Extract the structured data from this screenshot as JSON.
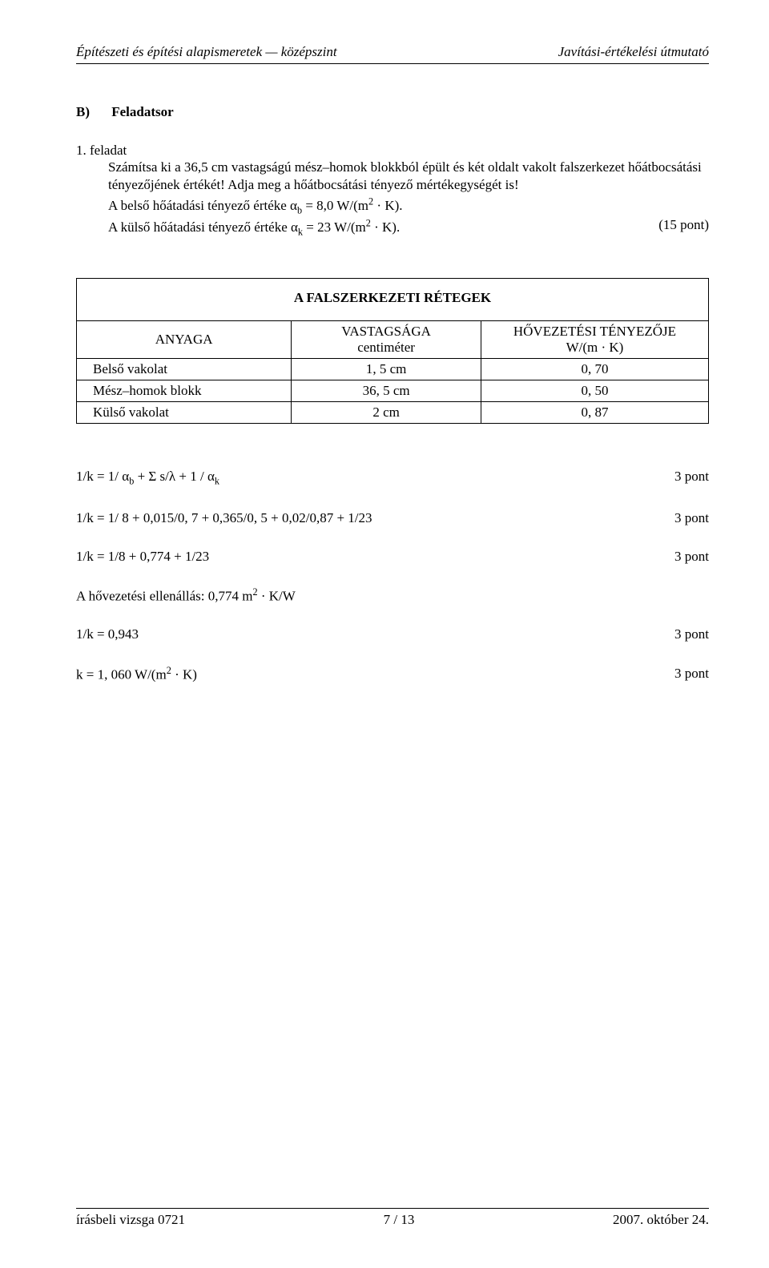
{
  "header": {
    "left": "Építészeti és építési alapismeretek — középszint",
    "right": "Javítási-értékelési útmutató"
  },
  "section": {
    "mark": "B)",
    "title": "Feladatsor"
  },
  "problem": {
    "num": "1. feladat",
    "p1": "Számítsa ki a 36,5 cm vastagságú mész–homok blokkból épült és két oldalt vakolt falszerkezet hőátbocsátási tényezőjének értékét! Adja meg a hőátbocsátási tényező mértékegységét is!",
    "l2_pre": "A belső hőátadási tényező értéke α",
    "l2_sub": "b",
    "l2_post": " = 8,0 W/(m",
    "l2_sup": "2",
    "l2_tail": " · K).",
    "l3_pre": "A külső hőátadási tényező értéke α",
    "l3_sub": "k",
    "l3_post": " = 23 W/(m",
    "l3_sup": "2",
    "l3_tail": " · K).",
    "points_label": "(15 pont)"
  },
  "table": {
    "title": "A FALSZERKEZETI RÉTEGEK",
    "head": {
      "c1": "ANYAGA",
      "c2a": "VASTAGSÁGA",
      "c2b": "centiméter",
      "c3a": "HŐVEZETÉSI TÉNYEZŐJE",
      "c3b": "W/(m · K)"
    },
    "rows": [
      {
        "a": "Belső vakolat",
        "b": "1, 5 cm",
        "c": "0, 70"
      },
      {
        "a": "Mész–homok blokk",
        "b": "36, 5 cm",
        "c": "0, 50"
      },
      {
        "a": "Külső vakolat",
        "b": "2 cm",
        "c": "0, 87"
      }
    ],
    "col_widths": [
      "34%",
      "30%",
      "36%"
    ]
  },
  "calc": [
    {
      "lhs_html": "1/k = 1/ α<sub>b</sub> + Σ  s/λ + 1 / α<sub>k</sub>",
      "pts": "3 pont"
    },
    {
      "lhs_html": "1/k = 1/ 8 + 0,015/0, 7 + 0,365/0, 5 + 0,02/0,87 + 1/23",
      "pts": "3 pont"
    },
    {
      "lhs_html": "1/k = 1/8 + 0,774 + 1/23",
      "pts": "3 pont"
    },
    {
      "lhs_html": "A hővezetési ellenállás: 0,774 m<sup>2</sup> ·  K/W",
      "pts": ""
    },
    {
      "lhs_html": "1/k = 0,943",
      "pts": "3 pont"
    },
    {
      "lhs_html": "k = 1, 060 W/(m<sup>2</sup> · K)",
      "pts": "3 pont"
    }
  ],
  "footer": {
    "left": "írásbeli vizsga 0721",
    "center": "7 / 13",
    "right": "2007. október 24."
  },
  "style": {
    "page_bg": "#ffffff",
    "text_color": "#000000",
    "font_family": "Times New Roman, serif",
    "base_font_size_pt": 12,
    "rule_color": "#000000",
    "table_border_color": "#000000"
  }
}
